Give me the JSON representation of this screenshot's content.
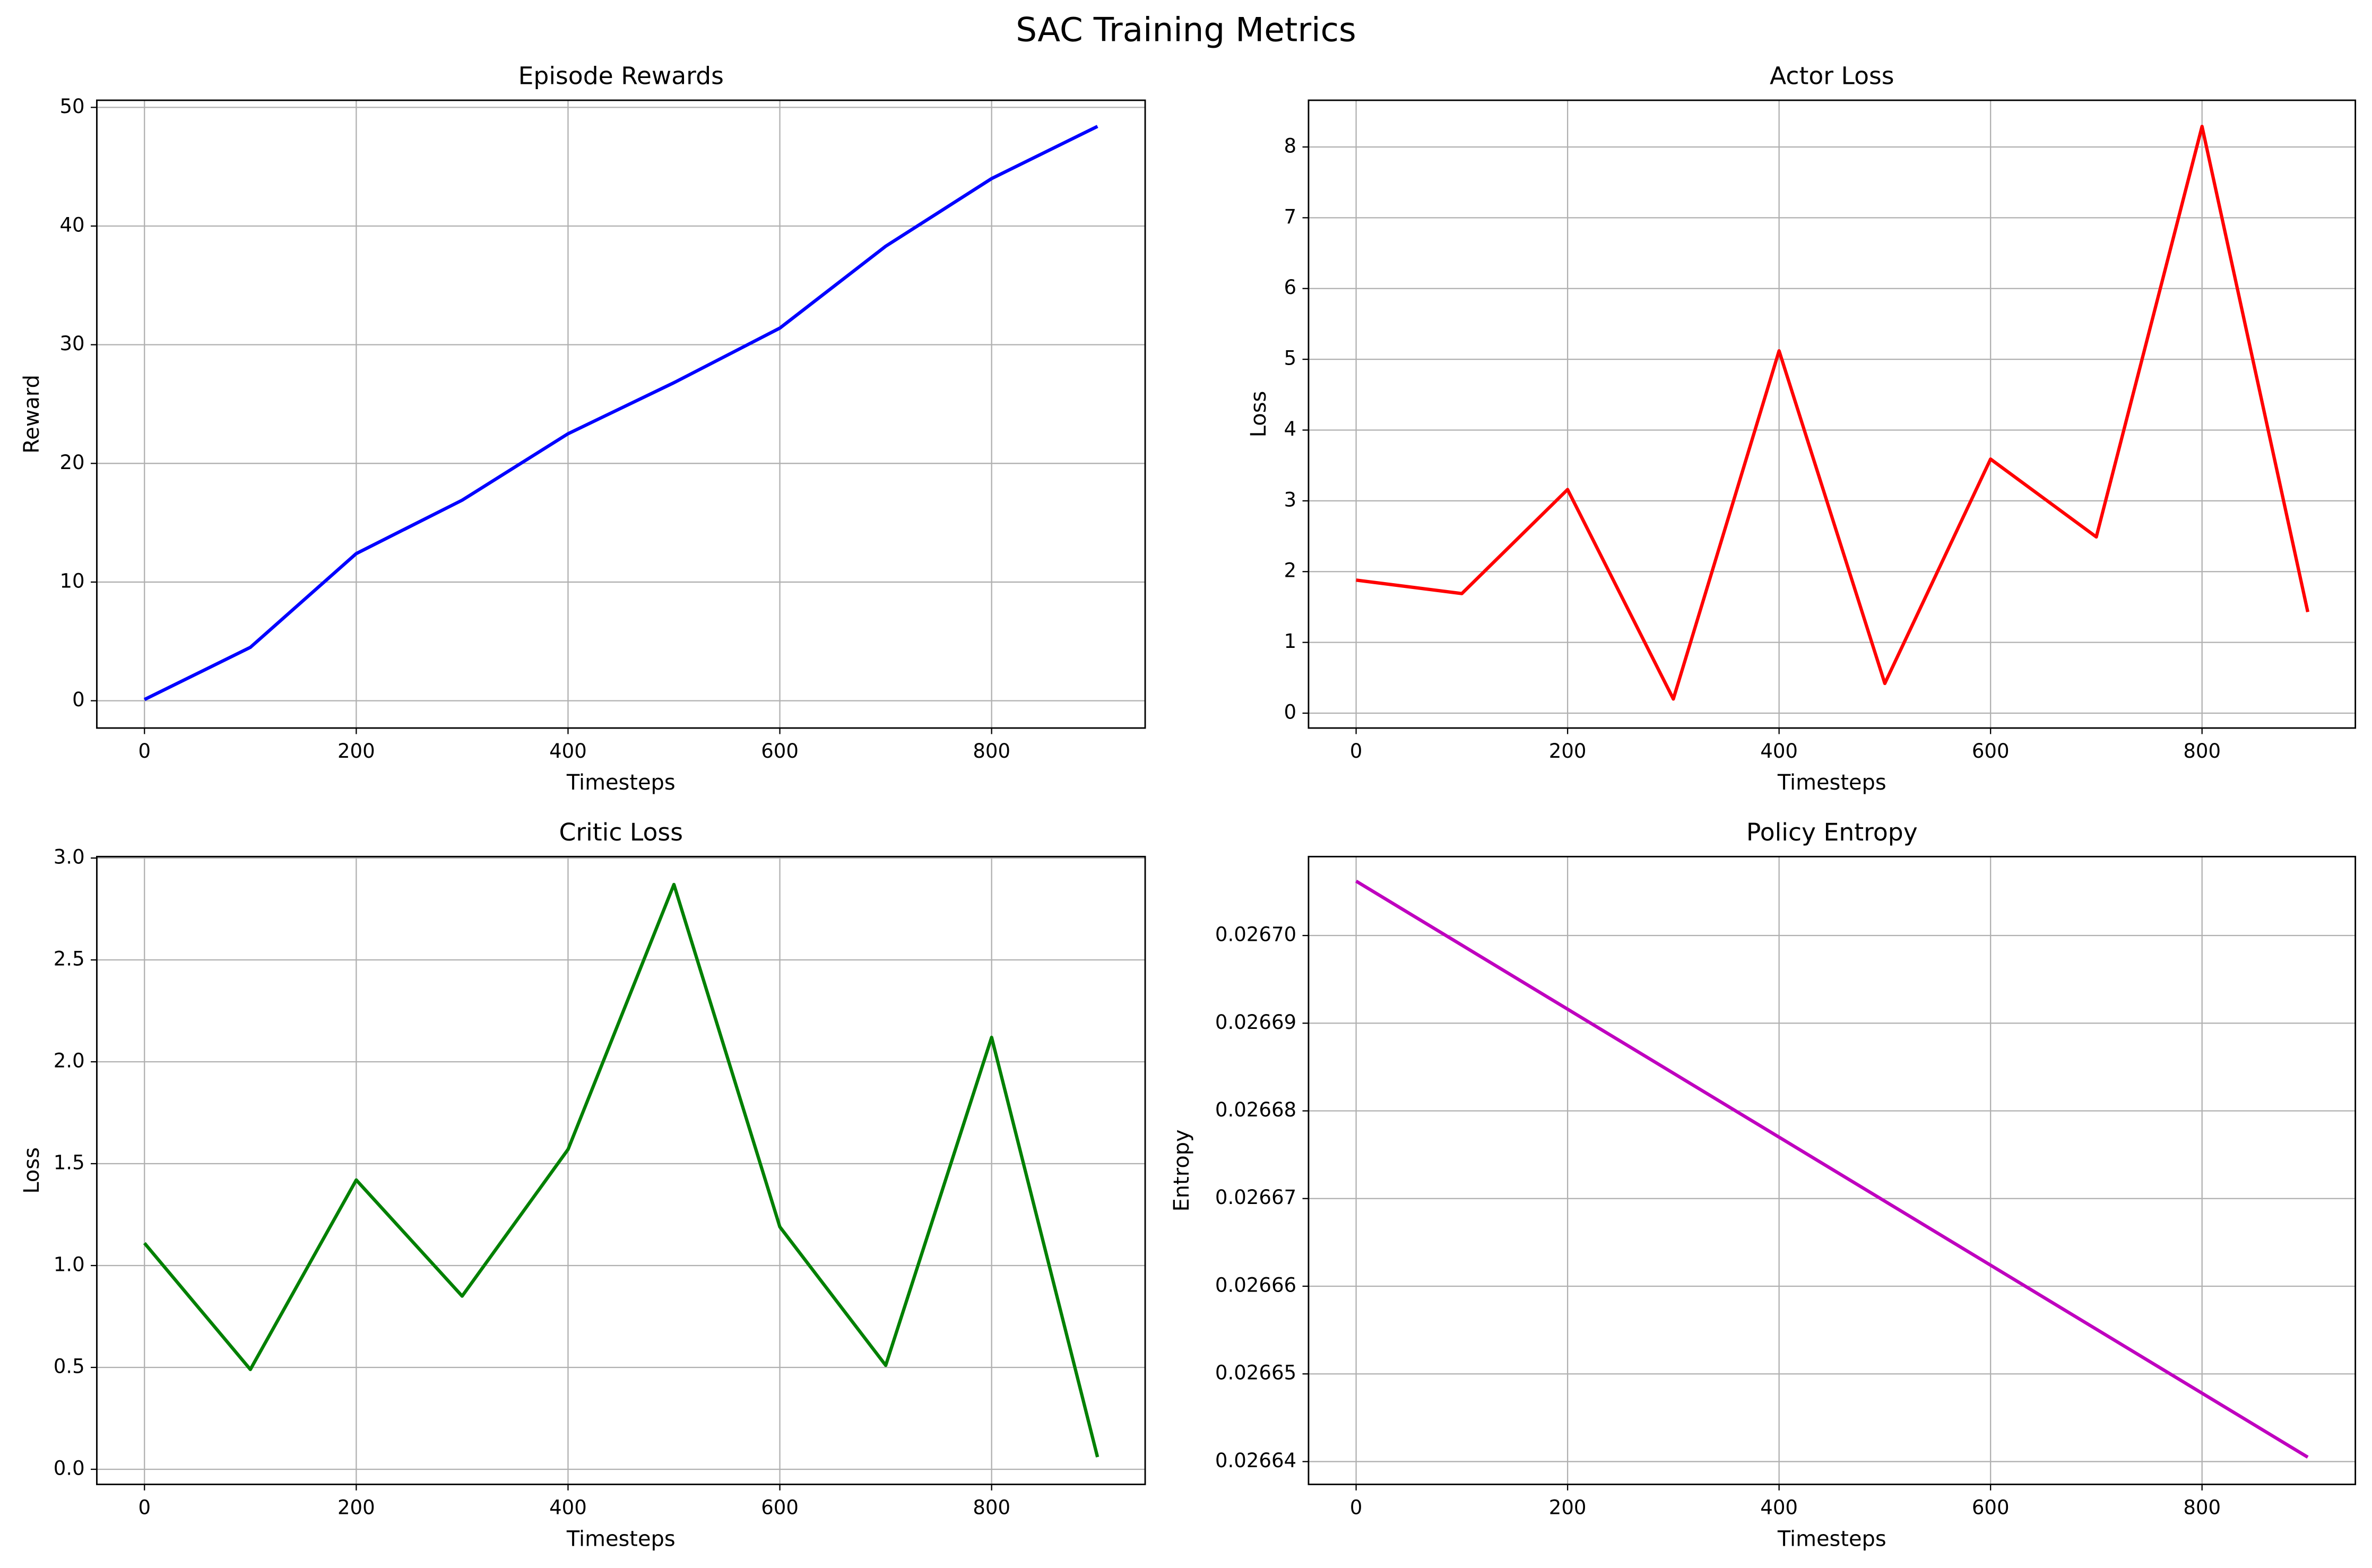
{
  "title": "SAC Training Metrics",
  "chart_data": [
    {
      "type": "line",
      "title": "Episode Rewards",
      "xlabel": "Timesteps",
      "ylabel": "Reward",
      "color": "#0000ff",
      "x": [
        0,
        100,
        200,
        300,
        400,
        500,
        600,
        700,
        800,
        900
      ],
      "values": [
        0.1,
        4.5,
        12.4,
        16.9,
        22.5,
        26.8,
        31.4,
        38.3,
        44.0,
        48.4
      ],
      "xlim": [
        -45,
        945
      ],
      "xticks": [
        0,
        200,
        400,
        600,
        800
      ],
      "ylim": [
        -2.3,
        50.6
      ],
      "yticks": [
        0,
        10,
        20,
        30,
        40,
        50
      ],
      "grid": true
    },
    {
      "type": "line",
      "title": "Actor Loss",
      "xlabel": "Timesteps",
      "ylabel": "Loss",
      "color": "#ff0000",
      "x": [
        0,
        100,
        200,
        300,
        400,
        500,
        600,
        700,
        800,
        900
      ],
      "values": [
        1.88,
        1.69,
        3.16,
        0.2,
        5.12,
        0.42,
        3.59,
        2.49,
        8.29,
        1.43
      ],
      "xlim": [
        -45,
        945
      ],
      "xticks": [
        0,
        200,
        400,
        600,
        800
      ],
      "ylim": [
        -0.21,
        8.66
      ],
      "yticks": [
        0,
        1,
        2,
        3,
        4,
        5,
        6,
        7,
        8
      ],
      "grid": true
    },
    {
      "type": "line",
      "title": "Critic Loss",
      "xlabel": "Timesteps",
      "ylabel": "Loss",
      "color": "#008000",
      "x": [
        0,
        100,
        200,
        300,
        400,
        500,
        600,
        700,
        800,
        900
      ],
      "values": [
        1.11,
        0.49,
        1.42,
        0.85,
        1.57,
        2.87,
        1.19,
        0.51,
        2.12,
        0.06
      ],
      "xlim": [
        -45,
        945
      ],
      "xticks": [
        0,
        200,
        400,
        600,
        800
      ],
      "ylim": [
        -0.074,
        3.007
      ],
      "yticks": [
        {
          "value": 0,
          "label": "0.0"
        },
        0.5,
        {
          "value": 1,
          "label": "1.0"
        },
        1.5,
        {
          "value": 2,
          "label": "2.0"
        },
        2.5,
        {
          "value": 3,
          "label": "3.0"
        }
      ],
      "grid": true
    },
    {
      "type": "line",
      "title": "Policy Entropy",
      "xlabel": "Timesteps",
      "ylabel": "Entropy",
      "color": "#bf00bf",
      "x": [
        0,
        100,
        200,
        300,
        400,
        500,
        600,
        700,
        800,
        900
      ],
      "values": [
        0.0267062,
        0.0266989,
        0.0266916,
        0.0266843,
        0.026677,
        0.0266697,
        0.0266624,
        0.0266551,
        0.0266478,
        0.0266405
      ],
      "xlim": [
        -45,
        945
      ],
      "xticks": [
        0,
        200,
        400,
        600,
        800
      ],
      "ylim": [
        0.0266374,
        0.026709
      ],
      "yticks": [
        0.02664,
        0.02665,
        0.02666,
        0.02667,
        0.02668,
        0.02669,
        {
          "value": 0.0267,
          "label": "0.02670"
        }
      ],
      "grid": true
    }
  ]
}
